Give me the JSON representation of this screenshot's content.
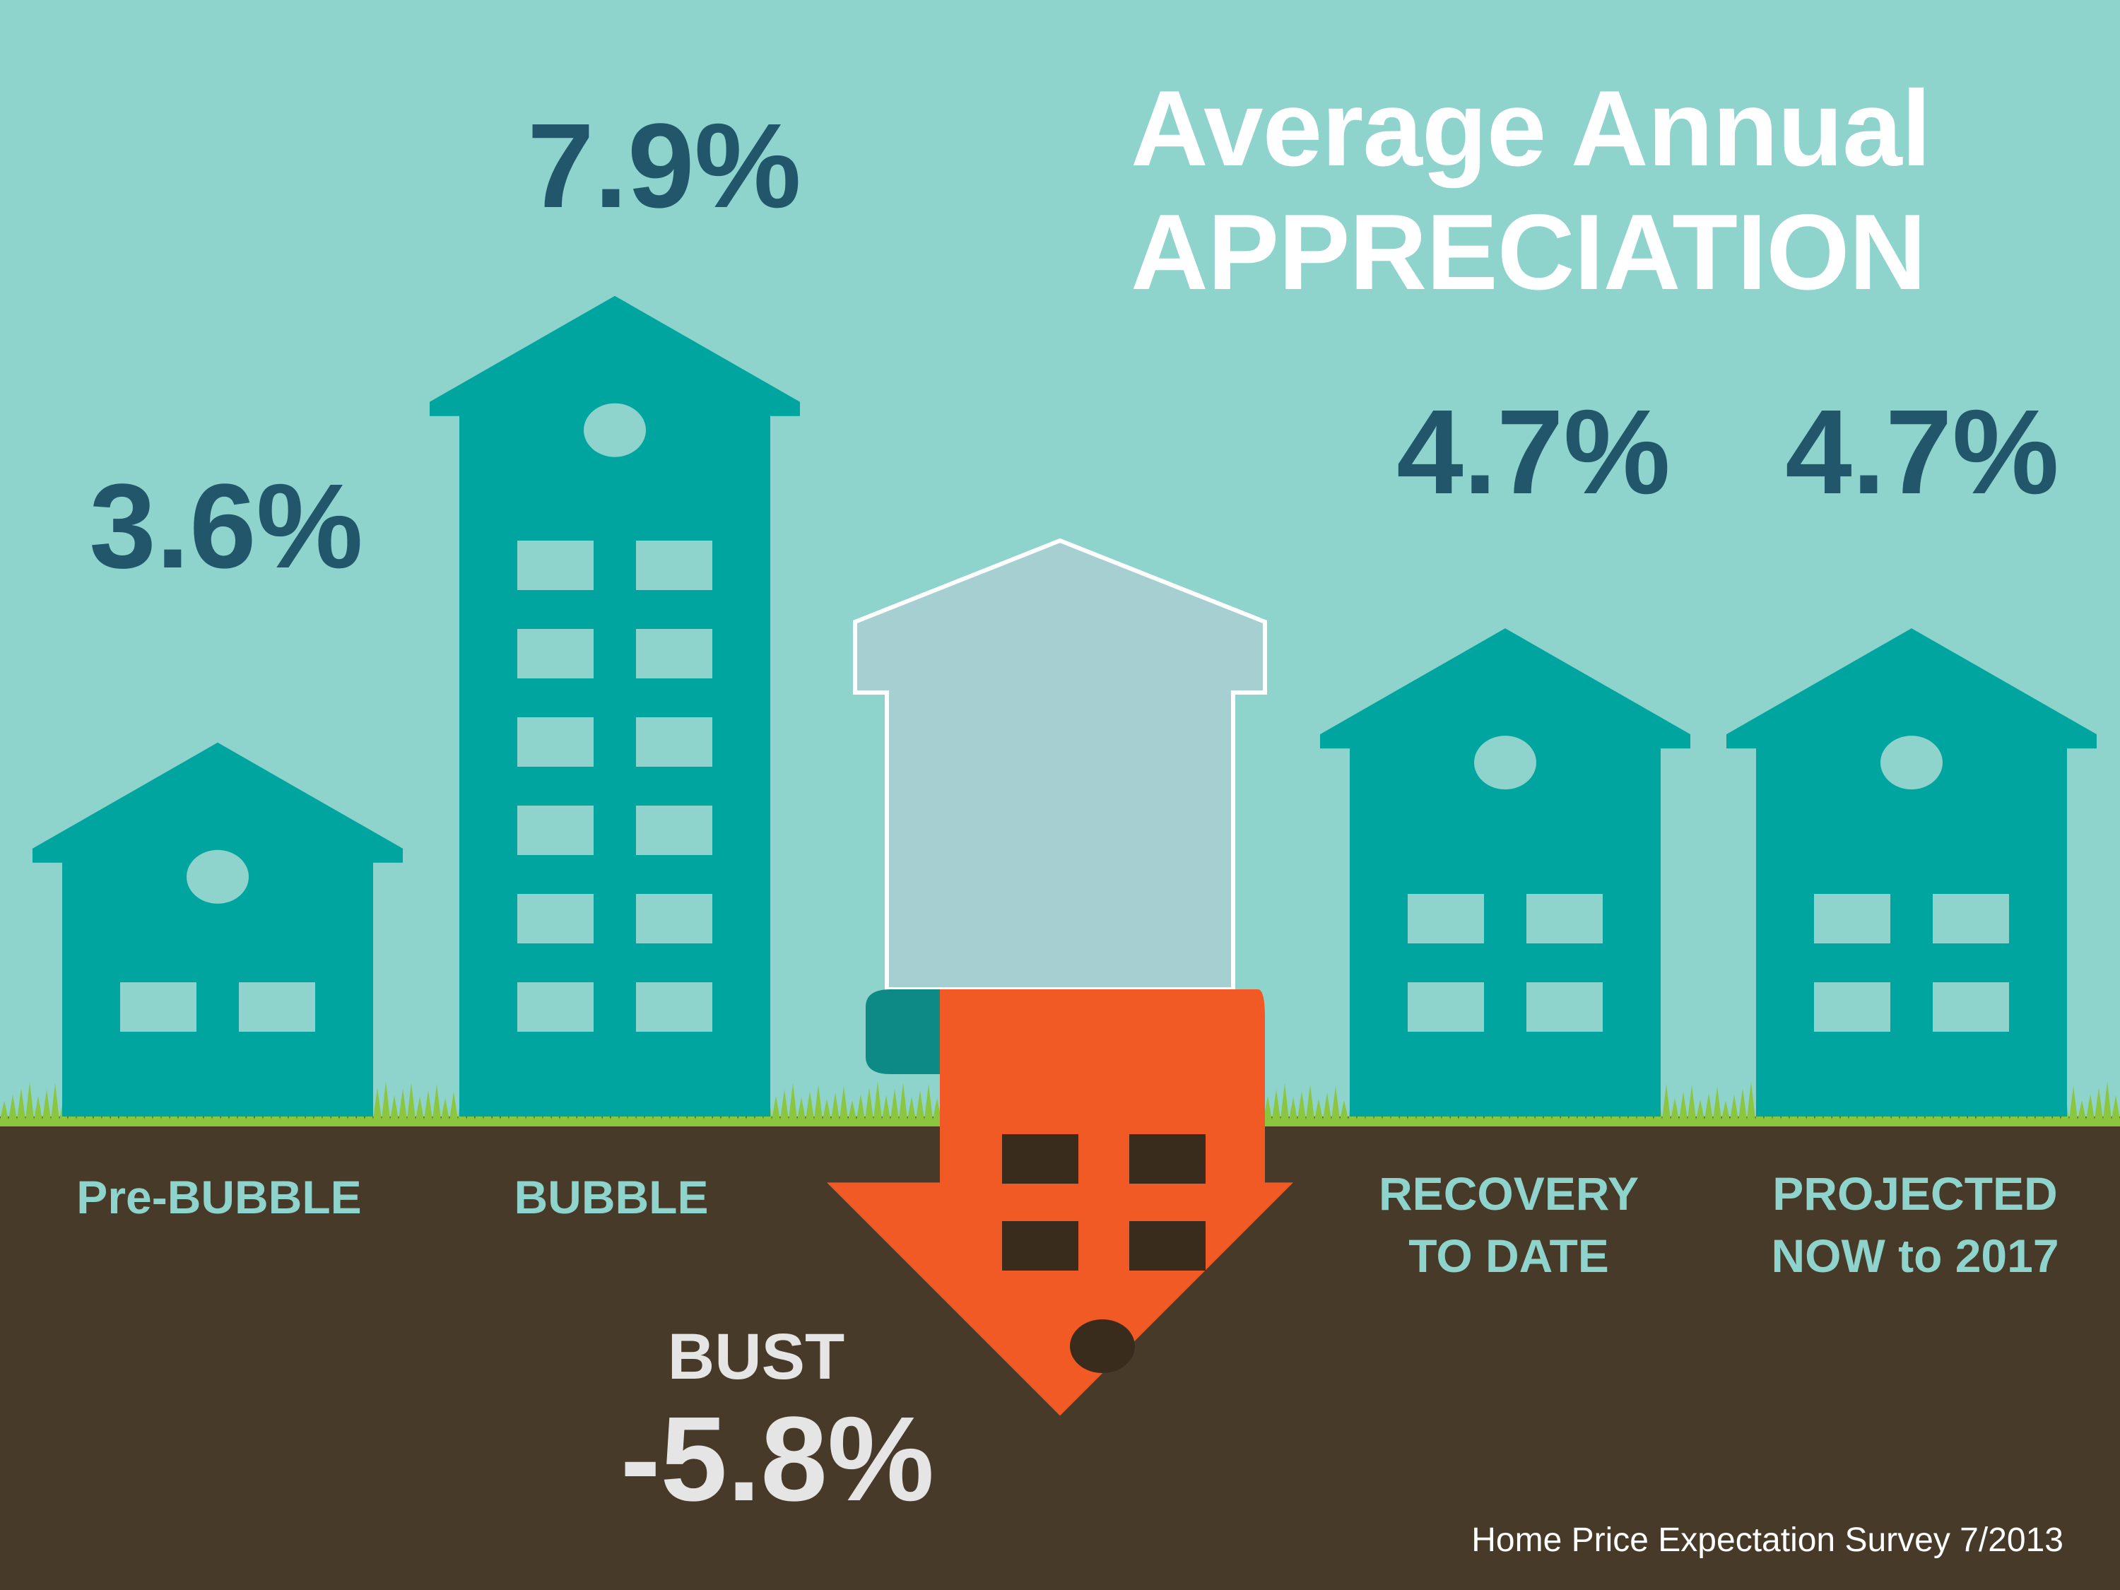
{
  "title": {
    "line1": "Average Annual",
    "line2": "APPRECIATION"
  },
  "source": "Home Price Expectation Survey 7/2013",
  "colors": {
    "sky": "#8ed3cc",
    "building": "#00a59f",
    "ground": "#473a28",
    "grass": "#8cc63f",
    "bust_arrow": "#f15a24",
    "value_text": "#21566b",
    "category_text": "#8ed3cc"
  },
  "chart_data": {
    "type": "bar",
    "title": "Average Annual APPRECIATION",
    "categories": [
      "Pre-BUBBLE",
      "BUBBLE",
      "BUST",
      "RECOVERY\nTO DATE",
      "PROJECTED\nNOW to 2017"
    ],
    "values": [
      3.6,
      7.9,
      -5.8,
      4.7,
      4.7
    ],
    "labels": [
      "3.6%",
      "7.9%",
      "-5.8%",
      "4.7%",
      "4.7%"
    ],
    "unit": "%",
    "xlabel": "",
    "ylabel": ""
  }
}
